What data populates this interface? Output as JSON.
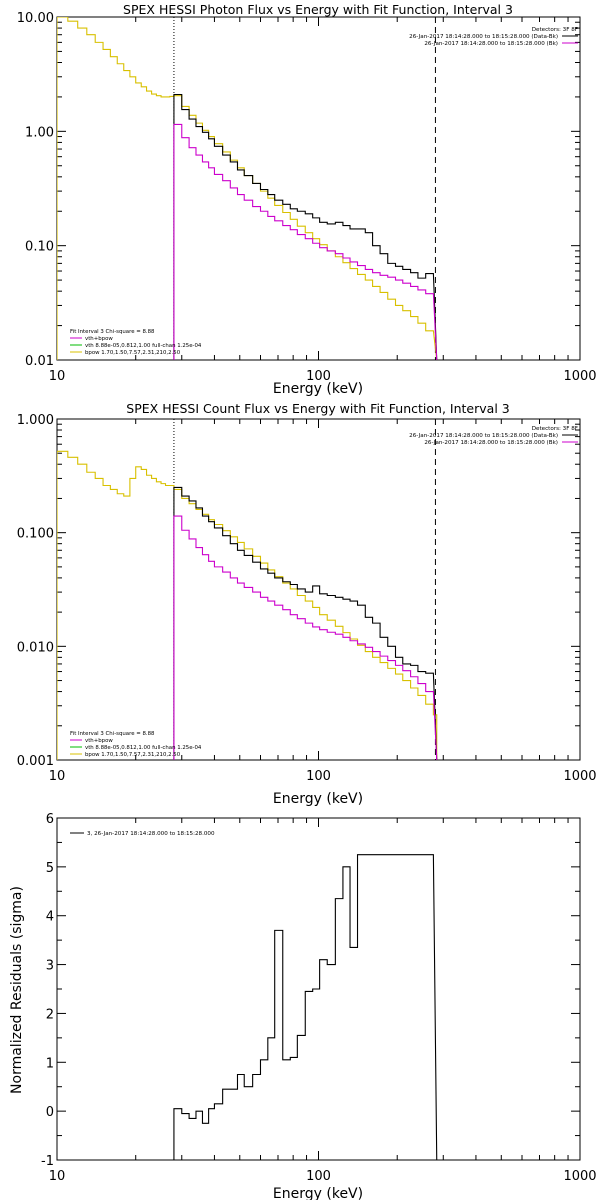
{
  "colors": {
    "data": "#000000",
    "total_fit": "#cc00cc",
    "vth_component": "#00bb00",
    "bpow_component": "#d8c000",
    "background": "#ffffff"
  },
  "chart_data": [
    {
      "type": "line",
      "title": "SPEX HESSI Photon Flux vs Energy with Fit Function, Interval 3",
      "xlabel": "Energy (keV)",
      "ylabel": "",
      "xscale": "log",
      "yscale": "log",
      "xlim": [
        10,
        1000
      ],
      "ylim": [
        0.01,
        10
      ],
      "xticks": [
        "10",
        "100",
        "1000"
      ],
      "yticks": [
        "0.01",
        "0.10",
        "1.00",
        "10.00"
      ],
      "vlines": [
        {
          "x": 28,
          "style": "dotted"
        },
        {
          "x": 280,
          "style": "dashed"
        }
      ],
      "legend_top_right": {
        "header": "Detectors: 3F 8F",
        "entries": [
          {
            "text": "26-Jan-2017 18:14:28.000 to 18:15:28.000 (Data-Bk)",
            "color": "data"
          },
          {
            "text": "26-Jan-2017 18:14:28.000 to 18:15:28.000 (Bk)",
            "color": "total_fit"
          }
        ]
      },
      "legend_bottom_left": {
        "header": "Fit Interval 3   Chi-square = 8.88",
        "entries": [
          {
            "text": "vth+bpow",
            "color": "total_fit"
          },
          {
            "text": "vth 8.88e-05,0.812,1.00  full-chan 1.25e-04",
            "color": "vth_component"
          },
          {
            "text": "bpow 1.70,1.50,7.57,2.31,210,2.50",
            "color": "bpow_component"
          }
        ]
      },
      "series": [
        {
          "name": "Data-Bk",
          "color": "data",
          "edges": [
            28,
            30,
            32,
            34,
            36,
            38,
            40,
            43,
            46,
            49,
            52,
            56,
            60,
            64,
            68,
            73,
            78,
            83,
            89,
            95,
            101,
            108,
            116,
            124,
            132,
            141,
            151,
            161,
            172,
            184,
            197,
            210,
            225,
            240,
            257,
            275
          ],
          "values": [
            2.1,
            1.55,
            1.28,
            1.1,
            0.98,
            0.86,
            0.74,
            0.62,
            0.54,
            0.46,
            0.41,
            0.35,
            0.31,
            0.28,
            0.25,
            0.23,
            0.21,
            0.2,
            0.19,
            0.175,
            0.16,
            0.155,
            0.16,
            0.15,
            0.14,
            0.14,
            0.13,
            0.1,
            0.085,
            0.07,
            0.066,
            0.062,
            0.058,
            0.052,
            0.057
          ]
        },
        {
          "name": "Bk",
          "color": "total_fit",
          "edges": [
            28,
            30,
            32,
            34,
            36,
            38,
            40,
            43,
            46,
            49,
            52,
            56,
            60,
            64,
            68,
            73,
            78,
            83,
            89,
            95,
            101,
            108,
            116,
            124,
            132,
            141,
            151,
            161,
            172,
            184,
            197,
            210,
            225,
            240,
            257,
            275
          ],
          "values": [
            1.15,
            0.88,
            0.72,
            0.62,
            0.54,
            0.48,
            0.42,
            0.37,
            0.32,
            0.28,
            0.25,
            0.22,
            0.2,
            0.18,
            0.165,
            0.15,
            0.138,
            0.125,
            0.115,
            0.105,
            0.096,
            0.09,
            0.085,
            0.078,
            0.072,
            0.067,
            0.062,
            0.058,
            0.055,
            0.053,
            0.05,
            0.047,
            0.044,
            0.041,
            0.038
          ]
        },
        {
          "name": "bpow",
          "color": "bpow_component",
          "edges": [
            10,
            11,
            12,
            13,
            14,
            15,
            16,
            17,
            18,
            19,
            20,
            21,
            22,
            23,
            24,
            25,
            26,
            27,
            28,
            30,
            32,
            34,
            36,
            38,
            40,
            43,
            46,
            49,
            52,
            56,
            60,
            64,
            68,
            73,
            78,
            83,
            89,
            95,
            101,
            108,
            116,
            124,
            132,
            141,
            151,
            161,
            172,
            184,
            197,
            210,
            225,
            240,
            257,
            275
          ],
          "values": [
            10.5,
            9.2,
            8.0,
            7.0,
            6.0,
            5.2,
            4.5,
            3.9,
            3.4,
            3.0,
            2.65,
            2.45,
            2.25,
            2.12,
            2.05,
            2.0,
            2.0,
            2.02,
            2.05,
            1.65,
            1.38,
            1.18,
            1.02,
            0.9,
            0.78,
            0.66,
            0.56,
            0.48,
            0.41,
            0.35,
            0.3,
            0.26,
            0.225,
            0.195,
            0.17,
            0.148,
            0.13,
            0.115,
            0.102,
            0.09,
            0.08,
            0.071,
            0.063,
            0.056,
            0.05,
            0.044,
            0.039,
            0.034,
            0.03,
            0.027,
            0.024,
            0.021,
            0.018
          ]
        }
      ]
    },
    {
      "type": "line",
      "title": "SPEX HESSI Count Flux vs Energy with Fit Function, Interval 3",
      "xlabel": "Energy (keV)",
      "ylabel": "",
      "xscale": "log",
      "yscale": "log",
      "xlim": [
        10,
        1000
      ],
      "ylim": [
        0.001,
        1
      ],
      "xticks": [
        "10",
        "100",
        "1000"
      ],
      "yticks": [
        "0.001",
        "0.010",
        "0.100",
        "1.000"
      ],
      "vlines": [
        {
          "x": 28,
          "style": "dotted"
        },
        {
          "x": 280,
          "style": "dashed"
        }
      ],
      "legend_top_right": {
        "header": "Detectors: 3F 8F",
        "entries": [
          {
            "text": "26-Jan-2017 18:14:28.000 to 18:15:28.000 (Data-Bk)",
            "color": "data"
          },
          {
            "text": "26-Jan-2017 18:14:28.000 to 18:15:28.000 (Bk)",
            "color": "total_fit"
          }
        ]
      },
      "legend_bottom_left": {
        "header": "Fit Interval 3   Chi-square = 8.88",
        "entries": [
          {
            "text": "vth+bpow",
            "color": "total_fit"
          },
          {
            "text": "vth 8.88e-05,0.812,1.00  full-chan 1.25e-04",
            "color": "vth_component"
          },
          {
            "text": "bpow 1.70,1.50,7.57,2.31,210,2.50",
            "color": "bpow_component"
          }
        ]
      },
      "series": [
        {
          "name": "Data-Bk",
          "color": "data",
          "edges": [
            28,
            30,
            32,
            34,
            36,
            38,
            40,
            43,
            46,
            49,
            52,
            56,
            60,
            64,
            68,
            73,
            78,
            83,
            89,
            95,
            101,
            108,
            116,
            124,
            132,
            141,
            151,
            161,
            172,
            184,
            197,
            210,
            225,
            240,
            257,
            275
          ],
          "values": [
            0.25,
            0.21,
            0.19,
            0.165,
            0.14,
            0.125,
            0.11,
            0.094,
            0.08,
            0.07,
            0.063,
            0.055,
            0.048,
            0.044,
            0.04,
            0.037,
            0.035,
            0.032,
            0.03,
            0.034,
            0.029,
            0.028,
            0.027,
            0.026,
            0.025,
            0.023,
            0.018,
            0.016,
            0.012,
            0.01,
            0.008,
            0.007,
            0.0068,
            0.006,
            0.0058
          ]
        },
        {
          "name": "Bk",
          "color": "total_fit",
          "edges": [
            28,
            30,
            32,
            34,
            36,
            38,
            40,
            43,
            46,
            49,
            52,
            56,
            60,
            64,
            68,
            73,
            78,
            83,
            89,
            95,
            101,
            108,
            116,
            124,
            132,
            141,
            151,
            161,
            172,
            184,
            197,
            210,
            225,
            240,
            257,
            275
          ],
          "values": [
            0.14,
            0.105,
            0.088,
            0.074,
            0.064,
            0.056,
            0.05,
            0.045,
            0.04,
            0.036,
            0.033,
            0.03,
            0.027,
            0.025,
            0.023,
            0.021,
            0.019,
            0.0175,
            0.016,
            0.0148,
            0.014,
            0.0133,
            0.0128,
            0.012,
            0.0112,
            0.0105,
            0.0098,
            0.009,
            0.0082,
            0.0075,
            0.0068,
            0.0061,
            0.0054,
            0.0047,
            0.004
          ]
        },
        {
          "name": "bpow",
          "color": "bpow_component",
          "edges": [
            10,
            11,
            12,
            13,
            14,
            15,
            16,
            17,
            18,
            19,
            20,
            21,
            22,
            23,
            24,
            25,
            26,
            27,
            28,
            30,
            32,
            34,
            36,
            38,
            40,
            43,
            46,
            49,
            52,
            56,
            60,
            64,
            68,
            73,
            78,
            83,
            89,
            95,
            101,
            108,
            116,
            124,
            132,
            141,
            151,
            161,
            172,
            184,
            197,
            210,
            225,
            240,
            257,
            275
          ],
          "values": [
            0.52,
            0.46,
            0.4,
            0.34,
            0.3,
            0.26,
            0.24,
            0.22,
            0.21,
            0.3,
            0.38,
            0.36,
            0.32,
            0.3,
            0.28,
            0.27,
            0.26,
            0.26,
            0.24,
            0.2,
            0.18,
            0.16,
            0.145,
            0.13,
            0.118,
            0.104,
            0.092,
            0.082,
            0.072,
            0.062,
            0.054,
            0.047,
            0.041,
            0.036,
            0.032,
            0.028,
            0.025,
            0.022,
            0.019,
            0.017,
            0.015,
            0.0132,
            0.0116,
            0.0102,
            0.009,
            0.008,
            0.0072,
            0.0064,
            0.0057,
            0.005,
            0.0043,
            0.0037,
            0.0031,
            0.0025
          ]
        }
      ]
    },
    {
      "type": "line",
      "title": "",
      "xlabel": "Energy (keV)",
      "ylabel": "Normalized Residuals (sigma)",
      "xscale": "log",
      "yscale": "linear",
      "xlim": [
        10,
        1000
      ],
      "ylim": [
        -1,
        6
      ],
      "xticks": [
        "10",
        "100",
        "1000"
      ],
      "yticks": [
        "-1",
        "0",
        "1",
        "2",
        "3",
        "4",
        "5",
        "6"
      ],
      "legend": [
        {
          "text": "3, 26-Jan-2017 18:14:28.000 to 18:15:28.000",
          "color": "data"
        }
      ],
      "series": [
        {
          "name": "3, 26-Jan-2017 18:14:28.000 to 18:15:28.000",
          "color": "data",
          "edges": [
            28,
            30,
            32,
            34,
            36,
            38,
            40,
            43,
            46,
            49,
            52,
            56,
            60,
            64,
            68,
            73,
            78,
            83,
            89,
            95,
            101,
            108,
            116,
            124,
            132,
            141,
            151,
            161,
            172,
            184,
            197,
            210,
            225,
            240,
            257,
            275
          ],
          "values": [
            0.05,
            -0.05,
            -0.15,
            0.0,
            -0.25,
            0.05,
            0.15,
            0.45,
            0.45,
            0.75,
            0.5,
            0.75,
            1.05,
            1.5,
            3.7,
            1.05,
            1.1,
            1.55,
            2.45,
            2.5,
            3.1,
            3.0,
            4.35,
            5.0,
            3.35,
            5.25,
            5.25,
            5.25,
            5.25,
            5.25,
            5.25,
            5.25,
            5.25,
            5.25,
            5.25
          ]
        }
      ]
    }
  ]
}
